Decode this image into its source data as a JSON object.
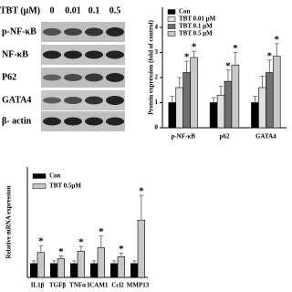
{
  "blot": {
    "treatment_label": "TBT (μM)",
    "doses": [
      "0",
      "0.01",
      "0.1",
      "0.5"
    ],
    "rows": [
      "p-NF-κB",
      "NF-κB",
      "P62",
      "GATA4",
      "β- actin"
    ]
  },
  "chart_data": [
    {
      "type": "bar",
      "y_label": "Protein expression (fold of control)",
      "categories": [
        "p-NF-κB",
        "p62",
        "GATA4"
      ],
      "series": [
        {
          "name": "Con",
          "color": "#000000",
          "values": [
            1,
            1,
            1
          ],
          "errors": [
            0.25,
            0.2,
            0.25
          ],
          "significant": false
        },
        {
          "name": "TBT 0.01 μM",
          "color": "#e0e0e0",
          "values": [
            1.6,
            1.3,
            1.6
          ],
          "errors": [
            0.4,
            0.35,
            0.45
          ],
          "significant": false
        },
        {
          "name": "TBT 0.1 μM",
          "color": "#707070",
          "values": [
            2.2,
            1.85,
            2.2
          ],
          "errors": [
            0.45,
            0.45,
            0.5
          ],
          "significant": true
        },
        {
          "name": "TBT 0.5 μM",
          "color": "#c8c8c8",
          "values": [
            2.8,
            2.5,
            2.85
          ],
          "errors": [
            0.25,
            0.5,
            0.5
          ],
          "significant": true
        }
      ],
      "significance_mark": "*",
      "ylim": [
        0,
        4.8
      ],
      "yticks": [
        0,
        1,
        2,
        3,
        4
      ]
    },
    {
      "type": "bar",
      "y_label": "Relative mRNA expression",
      "categories": [
        "IL1β",
        "TGFβ",
        "TNFα",
        "ICAM1",
        "Ccl2",
        "MMP13"
      ],
      "series": [
        {
          "name": "Con",
          "color": "#000000",
          "values": [
            1,
            1,
            1,
            1,
            1,
            1
          ],
          "errors": [
            0.2,
            0.2,
            0.2,
            0.2,
            0.2,
            0.2
          ],
          "significant": false
        },
        {
          "name": "TBT 0.5μM",
          "color": "#c8c8c8",
          "values": [
            1.8,
            1.35,
            1.9,
            2.15,
            1.5,
            4.15
          ],
          "errors": [
            0.5,
            0.2,
            0.35,
            0.85,
            0.25,
            1.8
          ],
          "significant": true
        }
      ],
      "significance_mark": "*",
      "ylim": [
        0,
        8
      ]
    }
  ]
}
